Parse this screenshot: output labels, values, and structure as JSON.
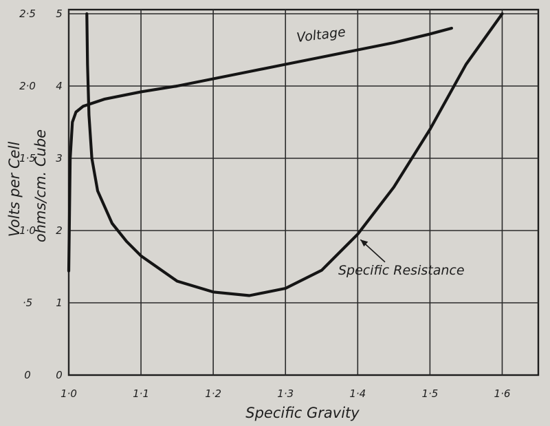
{
  "chart_data": {
    "type": "line",
    "title": "",
    "xlabel": "Specific Gravity",
    "ylabel_left": "Volts per Cell",
    "ylabel_right": "ohms/cm. Cube",
    "xlim": [
      1.0,
      1.6
    ],
    "x_ticks": [
      "1·0",
      "1·1",
      "1·2",
      "1·3",
      "1·4",
      "1·5",
      "1·6"
    ],
    "ylim_volts": [
      0,
      2.5
    ],
    "volts_ticks": [
      "0",
      "·5",
      "1·0",
      "1·5",
      "2·0",
      "2·5"
    ],
    "ylim_ohms": [
      0,
      5
    ],
    "ohms_ticks": [
      "0",
      "1",
      "2",
      "3",
      "4",
      "5"
    ],
    "grid": true,
    "series": [
      {
        "name": "Voltage",
        "axis": "volts",
        "x": [
          1.0,
          1.002,
          1.005,
          1.01,
          1.02,
          1.05,
          1.1,
          1.15,
          1.2,
          1.25,
          1.3,
          1.35,
          1.4,
          1.45,
          1.5,
          1.53
        ],
        "y": [
          0.72,
          1.5,
          1.75,
          1.82,
          1.86,
          1.91,
          1.96,
          2.0,
          2.05,
          2.1,
          2.15,
          2.2,
          2.25,
          2.3,
          2.36,
          2.4
        ]
      },
      {
        "name": "Specific Resistance",
        "axis": "ohms",
        "x": [
          1.025,
          1.026,
          1.028,
          1.032,
          1.04,
          1.06,
          1.08,
          1.1,
          1.15,
          1.2,
          1.25,
          1.3,
          1.35,
          1.4,
          1.45,
          1.5,
          1.55,
          1.6
        ],
        "y": [
          5.0,
          4.3,
          3.6,
          3.0,
          2.55,
          2.1,
          1.85,
          1.65,
          1.3,
          1.15,
          1.1,
          1.2,
          1.45,
          1.95,
          2.6,
          3.4,
          4.3,
          5.0
        ]
      }
    ],
    "annotations": [
      {
        "text": "Voltage",
        "x": 1.35,
        "y_ohms": 4.65
      },
      {
        "text": "Specific Resistance",
        "x": 1.37,
        "y_ohms": 1.45,
        "arrow_to": {
          "x": 1.4,
          "y_ohms": 1.95
        }
      }
    ]
  }
}
